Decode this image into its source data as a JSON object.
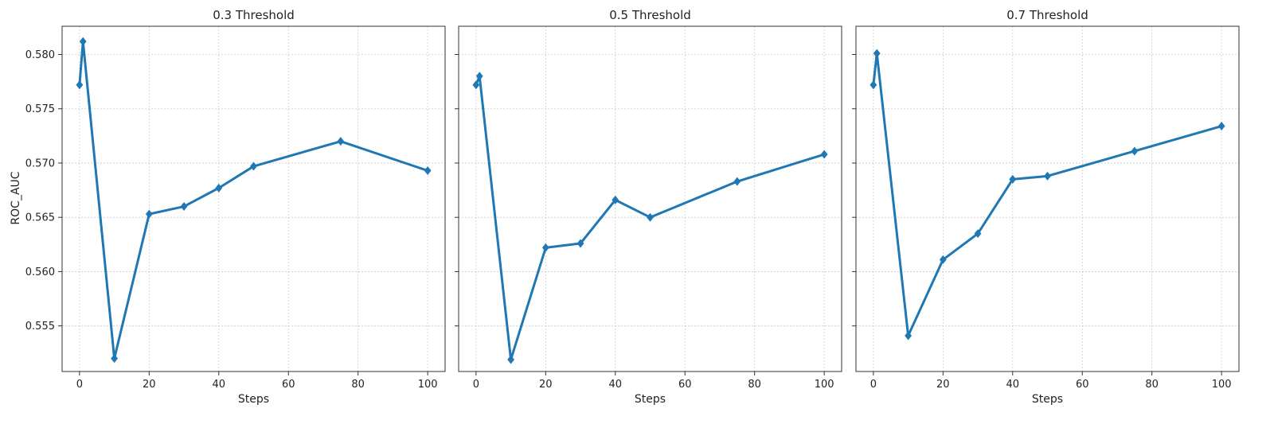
{
  "figure": {
    "ylabel": "ROC_AUC",
    "line_color": "#1f77b4"
  },
  "chart_data": [
    {
      "type": "line",
      "title": "0.3 Threshold",
      "xlabel": "Steps",
      "ylabel": "ROC_AUC",
      "xlim": [
        -5,
        105
      ],
      "ylim": [
        0.5508,
        0.5826
      ],
      "x_ticks": [
        0,
        20,
        40,
        60,
        80,
        100
      ],
      "y_ticks": [
        0.555,
        0.56,
        0.565,
        0.57,
        0.575,
        0.58
      ],
      "grid": true,
      "marker": "diamond",
      "x": [
        0,
        1,
        10,
        20,
        30,
        40,
        50,
        75,
        100
      ],
      "values": [
        0.5772,
        0.5812,
        0.552,
        0.5653,
        0.566,
        0.5677,
        0.5697,
        0.572,
        0.5693
      ]
    },
    {
      "type": "line",
      "title": "0.5 Threshold",
      "xlabel": "Steps",
      "ylabel": "",
      "xlim": [
        -5,
        105
      ],
      "ylim": [
        0.5508,
        0.5826
      ],
      "x_ticks": [
        0,
        20,
        40,
        60,
        80,
        100
      ],
      "y_ticks": [
        0.555,
        0.56,
        0.565,
        0.57,
        0.575,
        0.58
      ],
      "grid": true,
      "marker": "diamond",
      "x": [
        0,
        1,
        10,
        20,
        30,
        40,
        50,
        75,
        100
      ],
      "values": [
        0.5772,
        0.578,
        0.5519,
        0.5622,
        0.5626,
        0.5666,
        0.565,
        0.5683,
        0.5708
      ]
    },
    {
      "type": "line",
      "title": "0.7 Threshold",
      "xlabel": "Steps",
      "ylabel": "",
      "xlim": [
        -5,
        105
      ],
      "ylim": [
        0.5508,
        0.5826
      ],
      "x_ticks": [
        0,
        20,
        40,
        60,
        80,
        100
      ],
      "y_ticks": [
        0.555,
        0.56,
        0.565,
        0.57,
        0.575,
        0.58
      ],
      "grid": true,
      "marker": "diamond",
      "x": [
        0,
        1,
        10,
        20,
        30,
        40,
        50,
        75,
        100
      ],
      "values": [
        0.5772,
        0.5801,
        0.5541,
        0.5611,
        0.5635,
        0.5685,
        0.5688,
        0.5711,
        0.5734
      ]
    }
  ]
}
